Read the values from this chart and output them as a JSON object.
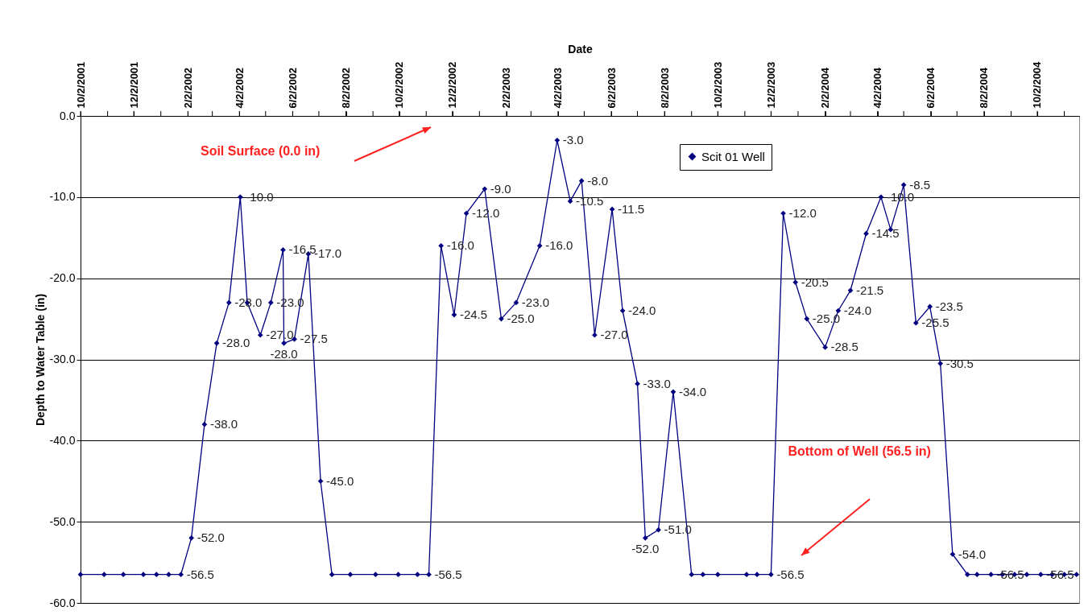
{
  "chart_data": {
    "type": "line",
    "xlabel": "Date",
    "ylabel": "Depth to Water Table (in)",
    "x": [
      "2001-10-02",
      "2001-10-29",
      "2001-11-20",
      "2001-12-13",
      "2001-12-28",
      "2002-01-11",
      "2002-01-25",
      "2002-02-06",
      "2002-02-21",
      "2002-03-07",
      "2002-03-21",
      "2002-04-03",
      "2002-04-11",
      "2002-04-26",
      "2002-05-08",
      "2002-05-22",
      "2002-05-23",
      "2002-06-04",
      "2002-06-20",
      "2002-07-04",
      "2002-07-17",
      "2002-08-07",
      "2002-09-05",
      "2002-10-01",
      "2002-10-23",
      "2002-11-05",
      "2002-11-19",
      "2002-12-04",
      "2002-12-18",
      "2003-01-08",
      "2003-01-27",
      "2003-02-13",
      "2003-03-12",
      "2003-04-01",
      "2003-04-16",
      "2003-04-29",
      "2003-05-14",
      "2003-06-03",
      "2003-06-15",
      "2003-07-02",
      "2003-07-11",
      "2003-07-26",
      "2003-08-12",
      "2003-09-02",
      "2003-09-15",
      "2003-10-02",
      "2003-11-04",
      "2003-11-16",
      "2003-12-02",
      "2003-12-16",
      "2003-12-30",
      "2004-01-12",
      "2004-02-02",
      "2004-02-17",
      "2004-03-02",
      "2004-03-20",
      "2004-04-06",
      "2004-04-17",
      "2004-05-02",
      "2004-05-16",
      "2004-06-01",
      "2004-06-13",
      "2004-06-27",
      "2004-07-14",
      "2004-07-25",
      "2004-08-10",
      "2004-08-23",
      "2004-09-06",
      "2004-09-20",
      "2004-10-06",
      "2004-10-19",
      "2004-11-02",
      "2004-11-16"
    ],
    "series": [
      {
        "name": "Scit 01 Well",
        "color": "#000080",
        "values": [
          -56.5,
          -56.5,
          -56.5,
          -56.5,
          -56.5,
          -56.5,
          -56.5,
          -52.0,
          -38.0,
          -28.0,
          -23.0,
          -10.0,
          -23.0,
          -27.0,
          -23.0,
          -16.5,
          -28.0,
          -27.5,
          -17.0,
          -45.0,
          -56.5,
          -56.5,
          -56.5,
          -56.5,
          -56.5,
          -56.5,
          -16.0,
          -24.5,
          -12.0,
          -9.0,
          -25.0,
          -23.0,
          -16.0,
          -3.0,
          -10.5,
          -8.0,
          -27.0,
          -11.5,
          -24.0,
          -33.0,
          -52.0,
          -51.0,
          -34.0,
          -56.5,
          -56.5,
          -56.5,
          -56.5,
          -56.5,
          -56.5,
          -12.0,
          -20.5,
          -25.0,
          -28.5,
          -24.0,
          -21.5,
          -14.5,
          -10.0,
          -14.0,
          -8.5,
          -25.5,
          -23.5,
          -30.5,
          -54.0,
          -56.5,
          -56.5,
          -56.5,
          -56.5,
          -56.5,
          -56.5,
          -56.5,
          -56.5,
          -56.5,
          -56.5
        ],
        "value_labels": [
          null,
          null,
          null,
          null,
          null,
          null,
          "-56.5",
          "-52.0",
          "-38.0",
          "-28.0",
          "-23.0",
          "-10.0",
          null,
          "-27.0",
          "-23.0",
          "-16.5",
          "-28.0",
          "-27.5",
          "-17.0",
          "-45.0",
          null,
          null,
          null,
          null,
          null,
          "-56.5",
          "-16.0",
          "-24.5",
          "-12.0",
          "-9.0",
          "-25.0",
          "-23.0",
          "-16.0",
          "-3.0",
          "-10.5",
          "-8.0",
          "-27.0",
          "-11.5",
          "-24.0",
          "-33.0",
          "-52.0",
          "-51.0",
          "-34.0",
          null,
          null,
          null,
          null,
          null,
          "-56.5",
          "-12.0",
          "-20.5",
          "-25.0",
          "-28.5",
          "-24.0",
          "-21.5",
          "-14.5",
          "-10.0",
          null,
          "-8.5",
          "-25.5",
          "-23.5",
          "-30.5",
          "-54.0",
          null,
          null,
          "-56.5",
          null,
          null,
          null,
          "-56.5",
          null,
          null,
          null
        ]
      }
    ],
    "xlim": [
      "2001-10-02",
      "2004-11-19"
    ],
    "xticks": [
      {
        "value": "2001-10-02",
        "label": "10/2/2001"
      },
      {
        "value": "2001-11-02",
        "label": null
      },
      {
        "value": "2001-12-02",
        "label": "12/2/2001"
      },
      {
        "value": "2002-01-02",
        "label": null
      },
      {
        "value": "2002-02-02",
        "label": "2/2/2002"
      },
      {
        "value": "2002-03-02",
        "label": null
      },
      {
        "value": "2002-04-02",
        "label": "4/2/2002"
      },
      {
        "value": "2002-05-02",
        "label": null
      },
      {
        "value": "2002-06-02",
        "label": "6/2/2002"
      },
      {
        "value": "2002-07-02",
        "label": null
      },
      {
        "value": "2002-08-02",
        "label": "8/2/2002"
      },
      {
        "value": "2002-09-02",
        "label": null
      },
      {
        "value": "2002-10-02",
        "label": "10/2/2002"
      },
      {
        "value": "2002-11-02",
        "label": null
      },
      {
        "value": "2002-12-02",
        "label": "12/2/2002"
      },
      {
        "value": "2003-01-02",
        "label": null
      },
      {
        "value": "2003-02-02",
        "label": "2/2/2003"
      },
      {
        "value": "2003-03-02",
        "label": null
      },
      {
        "value": "2003-04-02",
        "label": "4/2/2003"
      },
      {
        "value": "2003-05-02",
        "label": null
      },
      {
        "value": "2003-06-02",
        "label": "6/2/2003"
      },
      {
        "value": "2003-07-02",
        "label": null
      },
      {
        "value": "2003-08-02",
        "label": "8/2/2003"
      },
      {
        "value": "2003-09-02",
        "label": null
      },
      {
        "value": "2003-10-02",
        "label": "10/2/2003"
      },
      {
        "value": "2003-11-02",
        "label": null
      },
      {
        "value": "2003-12-02",
        "label": "12/2/2003"
      },
      {
        "value": "2004-01-02",
        "label": null
      },
      {
        "value": "2004-02-02",
        "label": "2/2/2004"
      },
      {
        "value": "2004-03-02",
        "label": null
      },
      {
        "value": "2004-04-02",
        "label": "4/2/2004"
      },
      {
        "value": "2004-05-02",
        "label": null
      },
      {
        "value": "2004-06-02",
        "label": "6/2/2004"
      },
      {
        "value": "2004-07-02",
        "label": null
      },
      {
        "value": "2004-08-02",
        "label": "8/2/2004"
      },
      {
        "value": "2004-09-02",
        "label": null
      },
      {
        "value": "2004-10-02",
        "label": "10/2/2004"
      },
      {
        "value": "2004-11-02",
        "label": null
      }
    ],
    "ylim": [
      -60,
      0
    ],
    "yticks": [
      {
        "value": 0,
        "label": "0.0"
      },
      {
        "value": -10,
        "label": "-10.0"
      },
      {
        "value": -20,
        "label": "-20.0"
      },
      {
        "value": -30,
        "label": "-30.0"
      },
      {
        "value": -40,
        "label": "-40.0"
      },
      {
        "value": -50,
        "label": "-50.0"
      },
      {
        "value": -60,
        "label": "-60.0"
      }
    ],
    "grid": "y",
    "legend": "top right",
    "marker": "diamond",
    "line_style": "solid",
    "annotations": [
      "Soil Surface (0.0 in)",
      "Bottom of Well (56.5 in)"
    ]
  }
}
